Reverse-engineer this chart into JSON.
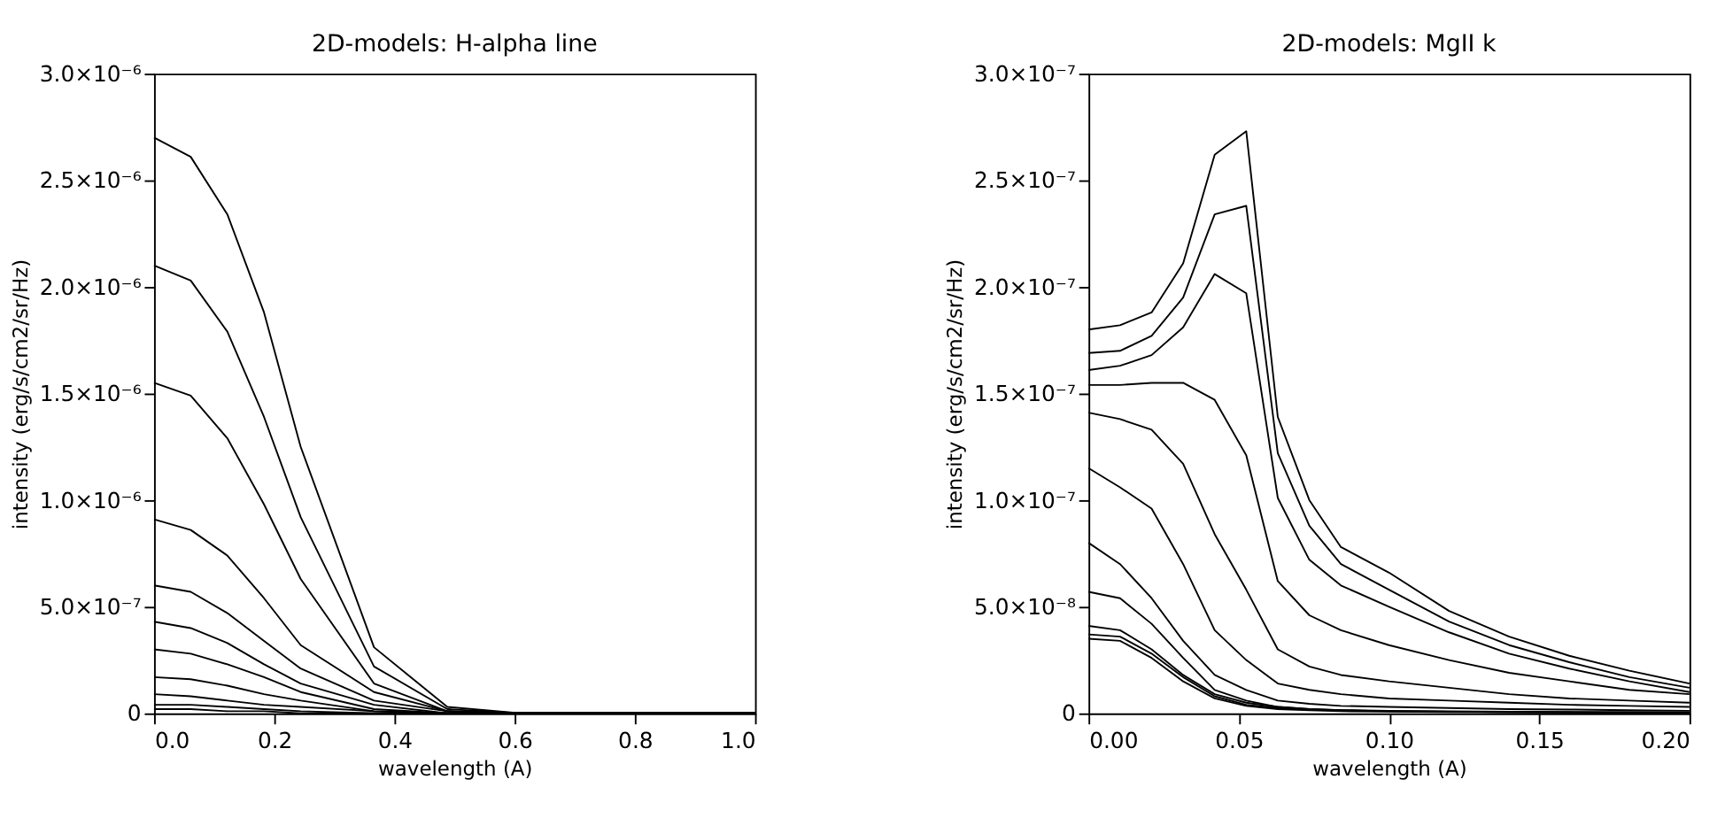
{
  "chart_data": [
    {
      "type": "line",
      "title": "2D-models: H-alpha line",
      "xlabel": "wavelength (A)",
      "ylabel": "intensity (erg/s/cm2/sr/Hz)",
      "x": [
        0,
        0.061,
        0.122,
        0.183,
        0.244,
        0.366,
        0.488,
        0.61,
        1.0
      ],
      "xlim": [
        0,
        1.0
      ],
      "xticks": [
        {
          "value": 0,
          "label": "0.0"
        },
        {
          "value": 0.2,
          "label": "0.2"
        },
        {
          "value": 0.4,
          "label": "0.4"
        },
        {
          "value": 0.6,
          "label": "0.6"
        },
        {
          "value": 0.8,
          "label": "0.8"
        },
        {
          "value": 1.0,
          "label": "1.0"
        }
      ],
      "ylim": [
        0,
        3e-06
      ],
      "yticks": [
        {
          "value": 0,
          "label": "0"
        },
        {
          "value": 5e-07,
          "label": "5.0×10⁻⁷"
        },
        {
          "value": 1e-06,
          "label": "1.0×10⁻⁶"
        },
        {
          "value": 1.5e-06,
          "label": "1.5×10⁻⁶"
        },
        {
          "value": 2e-06,
          "label": "2.0×10⁻⁶"
        },
        {
          "value": 2.5e-06,
          "label": "2.5×10⁻⁶"
        },
        {
          "value": 3e-06,
          "label": "3.0×10⁻⁶"
        }
      ],
      "grid": false,
      "legend": false,
      "marker": "none",
      "line_style": "solid",
      "series": [
        {
          "color": "#000000",
          "values": [
            2.7e-06,
            2.61e-06,
            2.34e-06,
            1.88e-06,
            1.25e-06,
            3.1e-07,
            3e-08,
            0,
            0
          ]
        },
        {
          "color": "#000000",
          "values": [
            2.1e-06,
            2.03e-06,
            1.79e-06,
            1.39e-06,
            9.2e-07,
            2.2e-07,
            2e-08,
            0,
            0
          ]
        },
        {
          "color": "#000000",
          "values": [
            1.55e-06,
            1.49e-06,
            1.29e-06,
            9.8e-07,
            6.3e-07,
            1.4e-07,
            1e-08,
            0,
            0
          ]
        },
        {
          "color": "#000000",
          "values": [
            9.1e-07,
            8.6e-07,
            7.4e-07,
            5.4e-07,
            3.2e-07,
            1e-07,
            1e-08,
            0,
            0
          ]
        },
        {
          "color": "#000000",
          "values": [
            6e-07,
            5.7e-07,
            4.7e-07,
            3.4e-07,
            2.1e-07,
            6e-08,
            1e-08,
            0,
            0
          ]
        },
        {
          "color": "#000000",
          "values": [
            4.3e-07,
            4e-07,
            3.3e-07,
            2.3e-07,
            1.4e-07,
            4e-08,
            0,
            0,
            0
          ]
        },
        {
          "color": "#000000",
          "values": [
            3e-07,
            2.8e-07,
            2.3e-07,
            1.7e-07,
            1e-07,
            2e-08,
            0,
            0,
            0
          ]
        },
        {
          "color": "#000000",
          "values": [
            1.7e-07,
            1.6e-07,
            1.3e-07,
            9e-08,
            6e-08,
            1e-08,
            0,
            0,
            0
          ]
        },
        {
          "color": "#000000",
          "values": [
            9e-08,
            8e-08,
            6e-08,
            4e-08,
            3e-08,
            1e-08,
            0,
            0,
            0
          ]
        },
        {
          "color": "#000000",
          "values": [
            4e-08,
            4e-08,
            3e-08,
            2e-08,
            1e-08,
            0,
            0,
            0,
            0
          ]
        },
        {
          "color": "#000000",
          "values": [
            2e-08,
            2e-08,
            1e-08,
            1e-08,
            0,
            0,
            0,
            0,
            0
          ]
        }
      ]
    },
    {
      "type": "line",
      "title": "2D-models: MgII k",
      "xlabel": "wavelength (A)",
      "ylabel": "intensity (erg/s/cm2/sr/Hz)",
      "x": [
        0,
        0.0105,
        0.021,
        0.0315,
        0.042,
        0.0525,
        0.063,
        0.0735,
        0.084,
        0.1,
        0.12,
        0.14,
        0.16,
        0.18,
        0.2
      ],
      "xlim": [
        0,
        0.2
      ],
      "xticks": [
        {
          "value": 0,
          "label": "0.00"
        },
        {
          "value": 0.05,
          "label": "0.05"
        },
        {
          "value": 0.1,
          "label": "0.10"
        },
        {
          "value": 0.15,
          "label": "0.15"
        },
        {
          "value": 0.2,
          "label": "0.20"
        }
      ],
      "ylim": [
        0,
        3e-07
      ],
      "yticks": [
        {
          "value": 0,
          "label": "0"
        },
        {
          "value": 5e-08,
          "label": "5.0×10⁻⁸"
        },
        {
          "value": 1e-07,
          "label": "1.0×10⁻⁷"
        },
        {
          "value": 1.5e-07,
          "label": "1.5×10⁻⁷"
        },
        {
          "value": 2e-07,
          "label": "2.0×10⁻⁷"
        },
        {
          "value": 2.5e-07,
          "label": "2.5×10⁻⁷"
        },
        {
          "value": 3e-07,
          "label": "3.0×10⁻⁷"
        }
      ],
      "grid": false,
      "legend": false,
      "marker": "none",
      "line_style": "solid",
      "series": [
        {
          "color": "#000000",
          "values": [
            1.8e-07,
            1.82e-07,
            1.88e-07,
            2.11e-07,
            2.62e-07,
            2.73e-07,
            1.39e-07,
            1e-07,
            7.8e-08,
            6.6e-08,
            4.8e-08,
            3.6e-08,
            2.7e-08,
            2e-08,
            1.4e-08
          ]
        },
        {
          "color": "#000000",
          "values": [
            1.69e-07,
            1.7e-07,
            1.77e-07,
            1.95e-07,
            2.34e-07,
            2.38e-07,
            1.22e-07,
            8.8e-08,
            7e-08,
            5.8e-08,
            4.3e-08,
            3.2e-08,
            2.4e-08,
            1.7e-08,
            1.2e-08
          ]
        },
        {
          "color": "#000000",
          "values": [
            1.61e-07,
            1.63e-07,
            1.68e-07,
            1.81e-07,
            2.06e-07,
            1.97e-07,
            1.01e-07,
            7.2e-08,
            6e-08,
            5e-08,
            3.8e-08,
            2.8e-08,
            2.1e-08,
            1.5e-08,
            1e-08
          ]
        },
        {
          "color": "#000000",
          "values": [
            1.54e-07,
            1.54e-07,
            1.55e-07,
            1.55e-07,
            1.47e-07,
            1.21e-07,
            6.2e-08,
            4.6e-08,
            3.9e-08,
            3.2e-08,
            2.5e-08,
            1.9e-08,
            1.5e-08,
            1.1e-08,
            9e-09
          ]
        },
        {
          "color": "#000000",
          "values": [
            1.41e-07,
            1.38e-07,
            1.33e-07,
            1.17e-07,
            8.4e-08,
            5.8e-08,
            3e-08,
            2.2e-08,
            1.8e-08,
            1.5e-08,
            1.2e-08,
            9e-09,
            7e-09,
            6e-09,
            5e-09
          ]
        },
        {
          "color": "#000000",
          "values": [
            1.15e-07,
            1.06e-07,
            9.6e-08,
            7e-08,
            3.9e-08,
            2.5e-08,
            1.4e-08,
            1.1e-08,
            9e-09,
            7e-09,
            6e-09,
            5e-09,
            4e-09,
            3.5e-09,
            3e-09
          ]
        },
        {
          "color": "#000000",
          "values": [
            8e-08,
            7e-08,
            5.4e-08,
            3.4e-08,
            1.8e-08,
            1.1e-08,
            6e-09,
            4.5e-09,
            3.5e-09,
            3e-09,
            2.5e-09,
            2e-09,
            1.8e-09,
            1.5e-09,
            1.2e-09
          ]
        },
        {
          "color": "#000000",
          "values": [
            5.7e-08,
            5.4e-08,
            4.2e-08,
            2.6e-08,
            1.1e-08,
            6e-09,
            3e-09,
            2e-09,
            1.5e-09,
            1.2e-09,
            1e-09,
            8e-10,
            7e-10,
            6e-10,
            5e-10
          ]
        },
        {
          "color": "#000000",
          "values": [
            4.1e-08,
            3.9e-08,
            3e-08,
            1.8e-08,
            9e-09,
            5e-09,
            3e-09,
            2e-09,
            1.5e-09,
            1e-09,
            8e-10,
            6e-10,
            5e-10,
            4e-10,
            4e-10
          ]
        },
        {
          "color": "#000000",
          "values": [
            3.7e-08,
            3.6e-08,
            2.8e-08,
            1.7e-08,
            8e-09,
            4e-09,
            2.5e-09,
            1.8e-09,
            1.3e-09,
            1e-09,
            8e-10,
            6e-10,
            5e-10,
            4e-10,
            3e-10
          ]
        },
        {
          "color": "#000000",
          "values": [
            3.5e-08,
            3.4e-08,
            2.6e-08,
            1.5e-08,
            7e-09,
            3.5e-09,
            2e-09,
            1.5e-09,
            1e-09,
            8e-10,
            6e-10,
            5e-10,
            4e-10,
            3e-10,
            3e-10
          ]
        }
      ]
    }
  ]
}
